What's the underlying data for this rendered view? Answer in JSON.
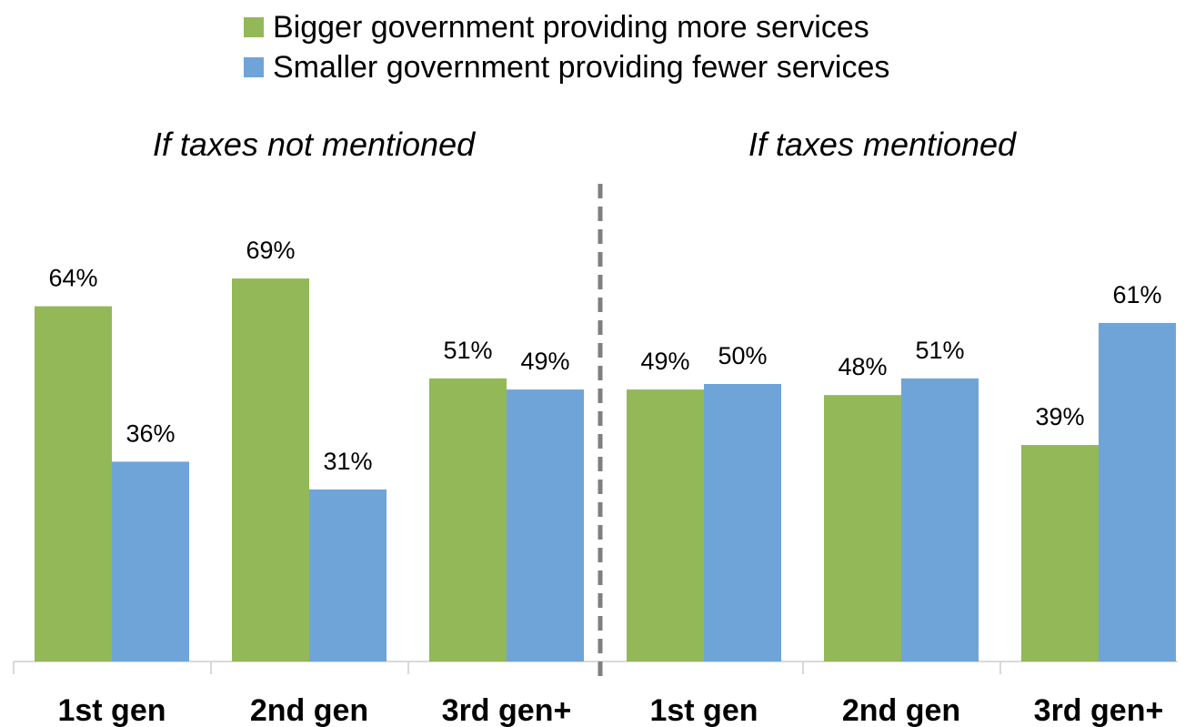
{
  "chart_data": {
    "type": "bar",
    "legend": [
      {
        "name": "Bigger government providing more services",
        "color": "#92b858"
      },
      {
        "name": "Smaller government providing fewer services",
        "color": "#6fa4d8"
      }
    ],
    "legend_position": "top",
    "grid": false,
    "ylim": [
      0,
      100
    ],
    "panels": [
      {
        "title": "If taxes not mentioned",
        "categories": [
          "1st gen",
          "2nd gen",
          "3rd gen+"
        ],
        "series": [
          {
            "name": "Bigger government providing more services",
            "values": [
              64,
              69,
              51
            ],
            "labels": [
              "64%",
              "69%",
              "51%"
            ]
          },
          {
            "name": "Smaller government providing fewer services",
            "values": [
              36,
              31,
              49
            ],
            "labels": [
              "36%",
              "31%",
              "49%"
            ]
          }
        ]
      },
      {
        "title": "If taxes mentioned",
        "categories": [
          "1st gen",
          "2nd gen",
          "3rd gen+"
        ],
        "series": [
          {
            "name": "Bigger government providing more services",
            "values": [
              49,
              48,
              39
            ],
            "labels": [
              "49%",
              "48%",
              "39%"
            ]
          },
          {
            "name": "Smaller government providing fewer services",
            "values": [
              50,
              51,
              61
            ],
            "labels": [
              "50%",
              "51%",
              "61%"
            ]
          }
        ]
      }
    ]
  }
}
